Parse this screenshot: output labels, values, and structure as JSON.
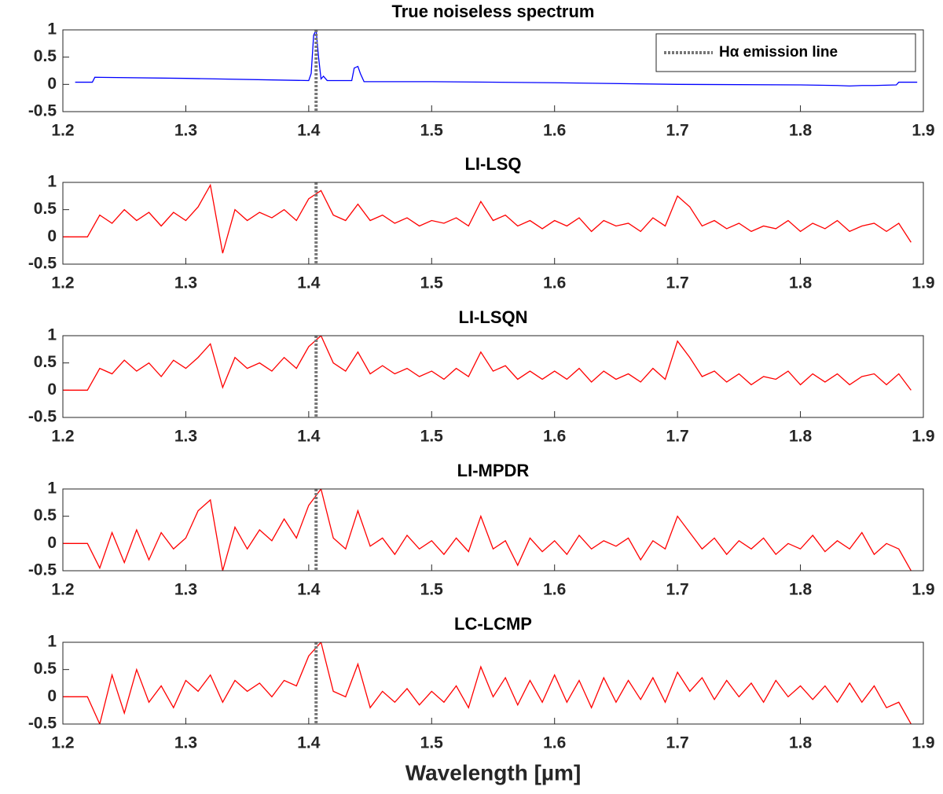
{
  "chart_data": [
    {
      "type": "line",
      "title": "True noiseless spectrum",
      "x": [
        1.21,
        1.224,
        1.226,
        1.3,
        1.4,
        1.402,
        1.404,
        1.406,
        1.408,
        1.41,
        1.412,
        1.415,
        1.417,
        1.435,
        1.437,
        1.44,
        1.442,
        1.445,
        1.5,
        1.6,
        1.7,
        1.8,
        1.83,
        1.84,
        1.85,
        1.86,
        1.878,
        1.88,
        1.895
      ],
      "series": [
        {
          "color": "#0000ff",
          "values": [
            0.04,
            0.04,
            0.13,
            0.11,
            0.07,
            0.2,
            0.9,
            1.0,
            0.5,
            0.1,
            0.15,
            0.07,
            0.07,
            0.07,
            0.3,
            0.33,
            0.2,
            0.05,
            0.05,
            0.03,
            0.0,
            -0.01,
            -0.02,
            -0.03,
            -0.02,
            -0.02,
            -0.01,
            0.04,
            0.04
          ]
        }
      ],
      "vline": {
        "x": 1.406,
        "color": "#777777",
        "name": "Hα emission line"
      },
      "legend": "upper right",
      "xlim": [
        1.2,
        1.9
      ],
      "ylim": [
        -0.5,
        1
      ],
      "xticks": [
        1.2,
        1.3,
        1.4,
        1.5,
        1.6,
        1.7,
        1.8,
        1.9
      ],
      "yticks": [
        -0.5,
        0,
        0.5,
        1
      ]
    },
    {
      "type": "line",
      "title": "LI-LSQ",
      "x": [
        1.2,
        1.21,
        1.22,
        1.23,
        1.24,
        1.25,
        1.26,
        1.27,
        1.28,
        1.29,
        1.3,
        1.31,
        1.32,
        1.33,
        1.34,
        1.35,
        1.36,
        1.37,
        1.38,
        1.39,
        1.4,
        1.41,
        1.42,
        1.43,
        1.44,
        1.45,
        1.46,
        1.47,
        1.48,
        1.49,
        1.5,
        1.51,
        1.52,
        1.53,
        1.54,
        1.55,
        1.56,
        1.57,
        1.58,
        1.59,
        1.6,
        1.61,
        1.62,
        1.63,
        1.64,
        1.65,
        1.66,
        1.67,
        1.68,
        1.69,
        1.7,
        1.71,
        1.72,
        1.73,
        1.74,
        1.75,
        1.76,
        1.77,
        1.78,
        1.79,
        1.8,
        1.81,
        1.82,
        1.83,
        1.84,
        1.85,
        1.86,
        1.87,
        1.88,
        1.89
      ],
      "series": [
        {
          "color": "#ff0000",
          "values": [
            0,
            0,
            0,
            0.4,
            0.25,
            0.5,
            0.3,
            0.45,
            0.2,
            0.45,
            0.3,
            0.55,
            0.95,
            -0.3,
            0.5,
            0.3,
            0.45,
            0.35,
            0.5,
            0.3,
            0.7,
            0.85,
            0.4,
            0.3,
            0.6,
            0.3,
            0.4,
            0.25,
            0.35,
            0.2,
            0.3,
            0.25,
            0.35,
            0.2,
            0.65,
            0.3,
            0.4,
            0.2,
            0.3,
            0.15,
            0.3,
            0.2,
            0.35,
            0.1,
            0.3,
            0.2,
            0.25,
            0.1,
            0.35,
            0.2,
            0.75,
            0.55,
            0.2,
            0.3,
            0.15,
            0.25,
            0.1,
            0.2,
            0.15,
            0.3,
            0.1,
            0.25,
            0.15,
            0.3,
            0.1,
            0.2,
            0.25,
            0.1,
            0.25,
            -0.1
          ]
        }
      ],
      "vline": {
        "x": 1.406,
        "color": "#777777"
      },
      "xlim": [
        1.2,
        1.9
      ],
      "ylim": [
        -0.5,
        1
      ],
      "xticks": [
        1.2,
        1.3,
        1.4,
        1.5,
        1.6,
        1.7,
        1.8,
        1.9
      ],
      "yticks": [
        -0.5,
        0,
        0.5,
        1
      ]
    },
    {
      "type": "line",
      "title": "LI-LSQN",
      "x": [
        1.2,
        1.21,
        1.22,
        1.23,
        1.24,
        1.25,
        1.26,
        1.27,
        1.28,
        1.29,
        1.3,
        1.31,
        1.32,
        1.33,
        1.34,
        1.35,
        1.36,
        1.37,
        1.38,
        1.39,
        1.4,
        1.41,
        1.42,
        1.43,
        1.44,
        1.45,
        1.46,
        1.47,
        1.48,
        1.49,
        1.5,
        1.51,
        1.52,
        1.53,
        1.54,
        1.55,
        1.56,
        1.57,
        1.58,
        1.59,
        1.6,
        1.61,
        1.62,
        1.63,
        1.64,
        1.65,
        1.66,
        1.67,
        1.68,
        1.69,
        1.7,
        1.71,
        1.72,
        1.73,
        1.74,
        1.75,
        1.76,
        1.77,
        1.78,
        1.79,
        1.8,
        1.81,
        1.82,
        1.83,
        1.84,
        1.85,
        1.86,
        1.87,
        1.88,
        1.89
      ],
      "series": [
        {
          "color": "#ff0000",
          "values": [
            0,
            0,
            0,
            0.4,
            0.3,
            0.55,
            0.35,
            0.5,
            0.25,
            0.55,
            0.4,
            0.6,
            0.85,
            0.05,
            0.6,
            0.4,
            0.5,
            0.35,
            0.6,
            0.4,
            0.8,
            1.0,
            0.5,
            0.35,
            0.7,
            0.3,
            0.45,
            0.3,
            0.4,
            0.25,
            0.35,
            0.2,
            0.4,
            0.25,
            0.7,
            0.35,
            0.45,
            0.2,
            0.35,
            0.2,
            0.35,
            0.2,
            0.4,
            0.15,
            0.35,
            0.2,
            0.3,
            0.15,
            0.4,
            0.2,
            0.9,
            0.6,
            0.25,
            0.35,
            0.15,
            0.3,
            0.1,
            0.25,
            0.2,
            0.35,
            0.1,
            0.3,
            0.15,
            0.3,
            0.1,
            0.25,
            0.3,
            0.1,
            0.3,
            0.0
          ]
        }
      ],
      "vline": {
        "x": 1.406,
        "color": "#777777"
      },
      "xlim": [
        1.2,
        1.9
      ],
      "ylim": [
        -0.5,
        1
      ],
      "xticks": [
        1.2,
        1.3,
        1.4,
        1.5,
        1.6,
        1.7,
        1.8,
        1.9
      ],
      "yticks": [
        -0.5,
        0,
        0.5,
        1
      ]
    },
    {
      "type": "line",
      "title": "LI-MPDR",
      "x": [
        1.2,
        1.21,
        1.22,
        1.23,
        1.24,
        1.25,
        1.26,
        1.27,
        1.28,
        1.29,
        1.3,
        1.31,
        1.32,
        1.33,
        1.34,
        1.35,
        1.36,
        1.37,
        1.38,
        1.39,
        1.4,
        1.41,
        1.42,
        1.43,
        1.44,
        1.45,
        1.46,
        1.47,
        1.48,
        1.49,
        1.5,
        1.51,
        1.52,
        1.53,
        1.54,
        1.55,
        1.56,
        1.57,
        1.58,
        1.59,
        1.6,
        1.61,
        1.62,
        1.63,
        1.64,
        1.65,
        1.66,
        1.67,
        1.68,
        1.69,
        1.7,
        1.71,
        1.72,
        1.73,
        1.74,
        1.75,
        1.76,
        1.77,
        1.78,
        1.79,
        1.8,
        1.81,
        1.82,
        1.83,
        1.84,
        1.85,
        1.86,
        1.87,
        1.88,
        1.89
      ],
      "series": [
        {
          "color": "#ff0000",
          "values": [
            0,
            0,
            0,
            -0.45,
            0.2,
            -0.35,
            0.25,
            -0.3,
            0.2,
            -0.1,
            0.1,
            0.6,
            0.8,
            -0.5,
            0.3,
            -0.1,
            0.25,
            0.05,
            0.45,
            0.1,
            0.7,
            1.0,
            0.1,
            -0.1,
            0.6,
            -0.05,
            0.1,
            -0.2,
            0.15,
            -0.1,
            0.05,
            -0.2,
            0.1,
            -0.15,
            0.5,
            -0.1,
            0.05,
            -0.4,
            0.1,
            -0.15,
            0.05,
            -0.2,
            0.15,
            -0.1,
            0.05,
            -0.05,
            0.1,
            -0.3,
            0.05,
            -0.1,
            0.5,
            0.2,
            -0.1,
            0.1,
            -0.2,
            0.05,
            -0.1,
            0.1,
            -0.2,
            0.0,
            -0.1,
            0.15,
            -0.15,
            0.05,
            -0.1,
            0.2,
            -0.2,
            0.0,
            -0.1,
            -0.5
          ]
        }
      ],
      "vline": {
        "x": 1.406,
        "color": "#777777"
      },
      "xlim": [
        1.2,
        1.9
      ],
      "ylim": [
        -0.5,
        1
      ],
      "xticks": [
        1.2,
        1.3,
        1.4,
        1.5,
        1.6,
        1.7,
        1.8,
        1.9
      ],
      "yticks": [
        -0.5,
        0,
        0.5,
        1
      ]
    },
    {
      "type": "line",
      "title": "LC-LCMP",
      "xlabel": "Wavelength [µm]",
      "x": [
        1.2,
        1.21,
        1.22,
        1.23,
        1.24,
        1.25,
        1.26,
        1.27,
        1.28,
        1.29,
        1.3,
        1.31,
        1.32,
        1.33,
        1.34,
        1.35,
        1.36,
        1.37,
        1.38,
        1.39,
        1.4,
        1.41,
        1.42,
        1.43,
        1.44,
        1.45,
        1.46,
        1.47,
        1.48,
        1.49,
        1.5,
        1.51,
        1.52,
        1.53,
        1.54,
        1.55,
        1.56,
        1.57,
        1.58,
        1.59,
        1.6,
        1.61,
        1.62,
        1.63,
        1.64,
        1.65,
        1.66,
        1.67,
        1.68,
        1.69,
        1.7,
        1.71,
        1.72,
        1.73,
        1.74,
        1.75,
        1.76,
        1.77,
        1.78,
        1.79,
        1.8,
        1.81,
        1.82,
        1.83,
        1.84,
        1.85,
        1.86,
        1.87,
        1.88,
        1.89
      ],
      "series": [
        {
          "color": "#ff0000",
          "values": [
            0,
            0,
            0,
            -0.5,
            0.4,
            -0.3,
            0.5,
            -0.1,
            0.2,
            -0.2,
            0.3,
            0.1,
            0.4,
            -0.1,
            0.3,
            0.1,
            0.25,
            0.0,
            0.3,
            0.2,
            0.75,
            1.0,
            0.1,
            0.0,
            0.6,
            -0.2,
            0.1,
            -0.1,
            0.15,
            -0.15,
            0.1,
            -0.1,
            0.2,
            -0.2,
            0.55,
            0.0,
            0.35,
            -0.15,
            0.3,
            -0.1,
            0.4,
            -0.1,
            0.3,
            -0.2,
            0.35,
            -0.1,
            0.3,
            -0.05,
            0.35,
            -0.1,
            0.45,
            0.1,
            0.35,
            -0.05,
            0.3,
            0.0,
            0.25,
            -0.1,
            0.3,
            0.0,
            0.2,
            -0.05,
            0.2,
            -0.1,
            0.25,
            -0.1,
            0.2,
            -0.2,
            -0.1,
            -0.5
          ]
        }
      ],
      "vline": {
        "x": 1.406,
        "color": "#777777"
      },
      "xlim": [
        1.2,
        1.9
      ],
      "ylim": [
        -0.5,
        1
      ],
      "xticks": [
        1.2,
        1.3,
        1.4,
        1.5,
        1.6,
        1.7,
        1.8,
        1.9
      ],
      "yticks": [
        -0.5,
        0,
        0.5,
        1
      ]
    }
  ]
}
